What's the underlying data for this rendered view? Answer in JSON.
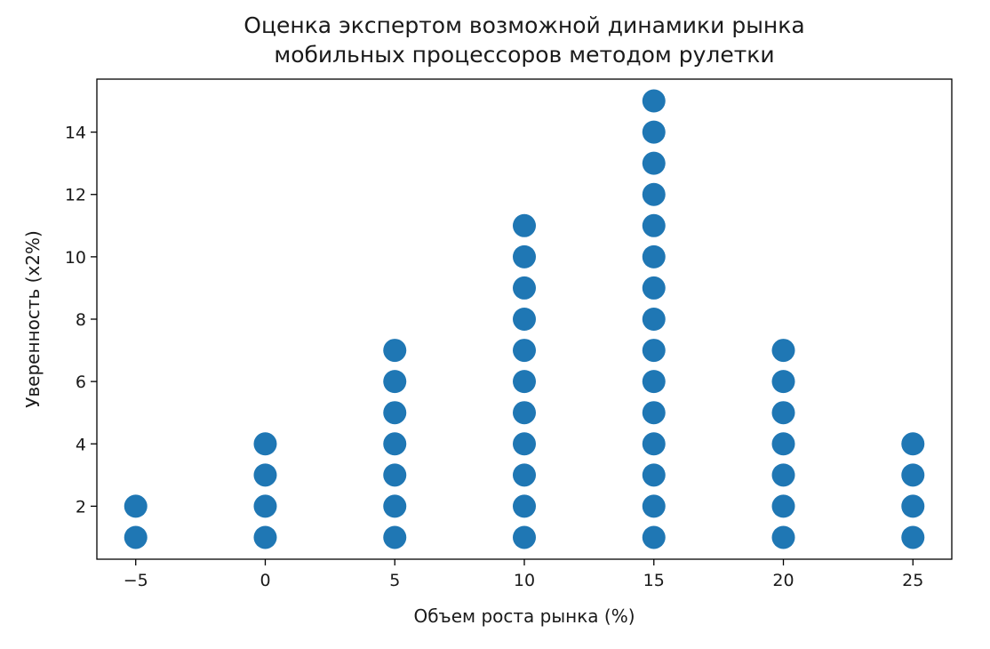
{
  "chart_data": {
    "type": "scatter",
    "title": "Оценка экспертом возможной динамики рынка мобильных процессоров методом рулетки",
    "title_lines": [
      "Оценка экспертом возможной динамики рынка",
      "мобильных процессоров методом рулетки"
    ],
    "xlabel": "Объем роста рынка (%)",
    "ylabel": "Уверенность (x2%)",
    "xlim": [
      -6.5,
      26.5
    ],
    "ylim": [
      0.3,
      15.7
    ],
    "xticks": [
      -5,
      0,
      5,
      10,
      15,
      20,
      25
    ],
    "xtick_labels": [
      "−5",
      "0",
      "5",
      "10",
      "15",
      "20",
      "25"
    ],
    "yticks": [
      2,
      4,
      6,
      8,
      10,
      12,
      14
    ],
    "ytick_labels": [
      "2",
      "4",
      "6",
      "8",
      "10",
      "12",
      "14"
    ],
    "grid": false,
    "marker_color": "#1f77b4",
    "columns": [
      {
        "x": -5,
        "count": 2
      },
      {
        "x": 0,
        "count": 4
      },
      {
        "x": 5,
        "count": 7
      },
      {
        "x": 10,
        "count": 11
      },
      {
        "x": 15,
        "count": 15
      },
      {
        "x": 20,
        "count": 7
      },
      {
        "x": 25,
        "count": 4
      }
    ]
  }
}
